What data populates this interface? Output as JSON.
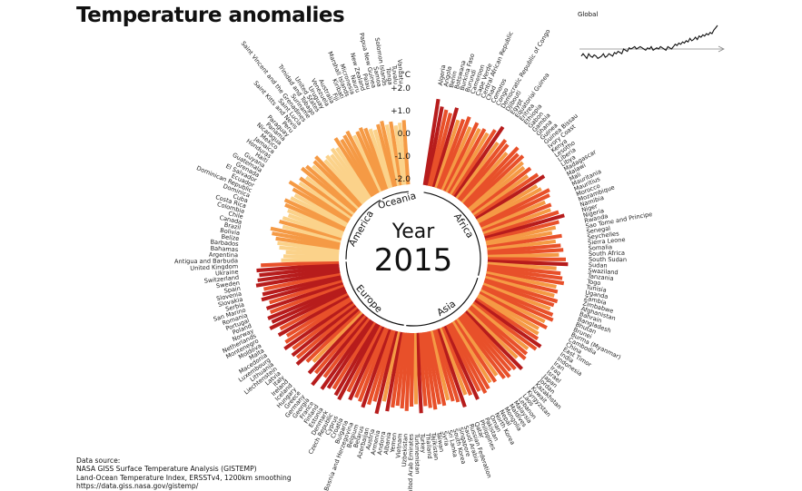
{
  "title": "Temperature anomalies",
  "center": {
    "label": "Year",
    "year": "2015"
  },
  "inset": {
    "label": "Global",
    "line_color": "#111111"
  },
  "source": {
    "heading": "Data source:",
    "lines": [
      "NASA GISS Surface Temperature Analysis (GISTEMP)",
      "Land-Ocean Temperature Index, ERSSTv4, 1200km smoothing",
      "https://data.giss.nasa.gov/gistemp/"
    ]
  },
  "colors": {
    "hot": "#b71c1c",
    "warm": "#e8502a",
    "mid": "#f59a45",
    "cool": "#fbd28a"
  },
  "chart_data": {
    "type": "radial-bar",
    "unit": "°C",
    "ylim": [
      -2.0,
      2.0
    ],
    "ticks": [
      "+2.0",
      "+1.0",
      "0.0",
      "-1.0",
      "-2.0"
    ],
    "regions": [
      "Oceania",
      "Africa",
      "Asia",
      "Europe",
      "America"
    ],
    "groups": [
      {
        "region": "Africa",
        "countries": [
          "Algeria",
          "Angola",
          "Benin",
          "Botswana",
          "Burkina Faso",
          "Burundi",
          "Cameroon",
          "Cape Verde",
          "Central African Republic",
          "Chad",
          "Comoros",
          "Congo",
          "Democratic Republic of Congo",
          "Djibouti",
          "Egypt",
          "Equatorial Guinea",
          "Eritrea",
          "Ethiopia",
          "Gabon",
          "Gambia",
          "Ghana",
          "Guinea",
          "Guinea Bissau",
          "Ivory Coast",
          "Kenya",
          "Lesotho",
          "Liberia",
          "Libya",
          "Madagascar",
          "Malawi",
          "Mali",
          "Mauritania",
          "Mauritius",
          "Morocco",
          "Mozambique",
          "Namibia",
          "Niger",
          "Nigeria",
          "Rwanda",
          "Sao Tome and Principe",
          "Senegal",
          "Seychelles",
          "Sierra Leone",
          "Somalia",
          "South Africa",
          "South Sudan",
          "Sudan",
          "Swaziland",
          "Tanzania",
          "Togo",
          "Tunisia",
          "Uganda",
          "Zambia",
          "Zimbabwe"
        ],
        "values": [
          1.6,
          1.3,
          1.2,
          1.1,
          1.4,
          0.9,
          1.0,
          1.2,
          0.8,
          1.1,
          0.9,
          1.0,
          0.9,
          1.2,
          1.5,
          0.8,
          1.1,
          1.0,
          0.7,
          1.2,
          1.0,
          1.1,
          0.9,
          0.8,
          1.0,
          0.7,
          1.1,
          1.3,
          0.8,
          0.9,
          1.2,
          1.1,
          0.8,
          1.0,
          0.9,
          1.2,
          1.4,
          1.1,
          0.9,
          0.7,
          1.1,
          0.8,
          1.0,
          1.1,
          0.9,
          1.2,
          1.3,
          0.8,
          1.0,
          1.1,
          1.2,
          0.9,
          1.0,
          0.9
        ]
      },
      {
        "region": "Asia",
        "countries": [
          "Afghanistan",
          "Bahrain",
          "Bangladesh",
          "Bhutan",
          "Brunei",
          "Burma (Myanmar)",
          "Cambodia",
          "China",
          "East Timor",
          "India",
          "Indonesia",
          "Iran",
          "Iraq",
          "Israel",
          "Japan",
          "Jordan",
          "Kazakhstan",
          "Kuwait",
          "Kyrgyzstan",
          "Laos",
          "Lebanon",
          "Malaysia",
          "Maldives",
          "Mongolia",
          "Nepal",
          "North Korea",
          "Oman",
          "Pakistan",
          "Philippines",
          "Qatar",
          "Russian Federation",
          "Saudi Arabia",
          "Singapore",
          "South Korea",
          "Sri Lanka",
          "Syria",
          "Taiwan",
          "Tajikistan",
          "Thailand",
          "Turkey",
          "Turkmenistan",
          "United Arab Emirates",
          "Uzbekistan",
          "Vietnam",
          "Yemen"
        ],
        "values": [
          1.1,
          1.0,
          0.9,
          1.1,
          1.2,
          0.9,
          1.1,
          0.8,
          0.9,
          1.0,
          1.3,
          1.2,
          0.9,
          1.0,
          1.1,
          0.8,
          1.3,
          1.1,
          1.0,
          1.2,
          1.1,
          0.8,
          1.0,
          0.9,
          1.1,
          1.2,
          1.0,
          1.3,
          1.0,
          0.9,
          1.4,
          1.1,
          1.0,
          0.9,
          1.1,
          1.0,
          1.2,
          1.1,
          1.0,
          1.3,
          0.9,
          1.0,
          1.2,
          1.1,
          1.0
        ]
      },
      {
        "region": "Europe",
        "countries": [
          "Albania",
          "Andorra",
          "Armenia",
          "Austria",
          "Azerbaijan",
          "Belarus",
          "Belgium",
          "Bosnia and Herzegovina",
          "Bulgaria",
          "Croatia",
          "Cyprus",
          "Czech Republic",
          "Denmark",
          "Estonia",
          "Finland",
          "France",
          "Georgia",
          "Germany",
          "Greece",
          "Hungary",
          "Iceland",
          "Ireland",
          "Italy",
          "Latvia",
          "Liechtenstein",
          "Lithuania",
          "Luxembourg",
          "Macedonia",
          "Malta",
          "Moldova",
          "Montenegro",
          "Netherlands",
          "Norway",
          "Poland",
          "Portugal",
          "Romania",
          "San Marino",
          "Serbia",
          "Slovakia",
          "Slovenia",
          "Spain",
          "Sweden",
          "Switzerland",
          "Ukraine",
          "United Kingdom"
        ],
        "values": [
          1.1,
          1.3,
          0.9,
          1.5,
          1.0,
          1.2,
          1.4,
          1.2,
          1.1,
          1.3,
          1.0,
          1.5,
          1.4,
          1.2,
          1.3,
          1.5,
          1.0,
          1.6,
          1.1,
          1.3,
          0.8,
          1.0,
          1.4,
          1.2,
          1.3,
          1.1,
          1.4,
          1.2,
          1.0,
          1.3,
          1.1,
          1.5,
          1.3,
          1.4,
          1.2,
          1.3,
          1.1,
          1.4,
          1.3,
          1.2,
          1.5,
          1.4,
          1.3,
          1.4,
          1.2
        ]
      },
      {
        "region": "America",
        "countries": [
          "Antigua and Barbuda",
          "Argentina",
          "Bahamas",
          "Barbados",
          "Belize",
          "Bolivia",
          "Brazil",
          "Canada",
          "Chile",
          "Colombia",
          "Costa Rica",
          "Cuba",
          "Dominica",
          "Dominican Republic",
          "Ecuador",
          "El Salvador",
          "Grenada",
          "Guatemala",
          "Guyana",
          "Haiti",
          "Honduras",
          "Jamaica",
          "Mexico",
          "Nicaragua",
          "Panama",
          "Paraguay",
          "Peru",
          "Saint Kitts and Nevis",
          "Saint Lucia",
          "Saint Vincent and the Grenadines",
          "Suriname",
          "Trinidad and Tobago",
          "United States",
          "Uruguay",
          "Venezuela"
        ],
        "values": [
          0.3,
          0.2,
          0.1,
          0.4,
          0.5,
          0.6,
          0.8,
          0.9,
          0.4,
          0.6,
          0.5,
          0.3,
          0.4,
          0.6,
          0.7,
          0.5,
          0.4,
          0.6,
          0.9,
          0.5,
          0.6,
          0.4,
          0.8,
          0.7,
          0.5,
          0.6,
          0.7,
          0.3,
          0.4,
          0.3,
          0.5,
          0.4,
          0.8,
          0.6,
          0.7
        ]
      },
      {
        "region": "Oceania",
        "countries": [
          "Australia",
          "Fiji",
          "Kiribati",
          "Marshall Islands",
          "Micronesia",
          "Nauru",
          "New Zealand",
          "Palau",
          "Papua New Guinea",
          "Samoa",
          "Solomon Islands",
          "Tonga",
          "Tuvalu",
          "Vanuatu"
        ],
        "values": [
          0.8,
          0.5,
          0.6,
          0.7,
          0.6,
          0.5,
          0.4,
          0.6,
          0.7,
          0.5,
          0.6,
          0.4,
          0.5,
          0.6
        ]
      }
    ],
    "global_series": [
      -0.3,
      -0.2,
      -0.3,
      -0.4,
      -0.2,
      -0.3,
      -0.35,
      -0.25,
      -0.3,
      -0.4,
      -0.35,
      -0.3,
      -0.2,
      -0.35,
      -0.3,
      -0.2,
      -0.25,
      -0.3,
      -0.15,
      -0.2,
      -0.1,
      -0.15,
      -0.2,
      0.0,
      -0.05,
      -0.1,
      0.05,
      0.0,
      0.05,
      0.1,
      0.0,
      0.05,
      0.1,
      0.05,
      0.0,
      -0.05,
      0.05,
      0.0,
      0.1,
      -0.05,
      0.0,
      0.05,
      0.0,
      0.1,
      0.05,
      0.0,
      -0.05,
      0.1,
      0.05,
      0.0,
      0.1,
      0.2,
      0.15,
      0.25,
      0.2,
      0.3,
      0.25,
      0.35,
      0.3,
      0.45,
      0.35,
      0.4,
      0.5,
      0.4,
      0.55,
      0.5,
      0.6,
      0.55,
      0.65,
      0.6,
      0.7,
      0.65,
      0.8,
      0.9,
      1.0
    ]
  }
}
